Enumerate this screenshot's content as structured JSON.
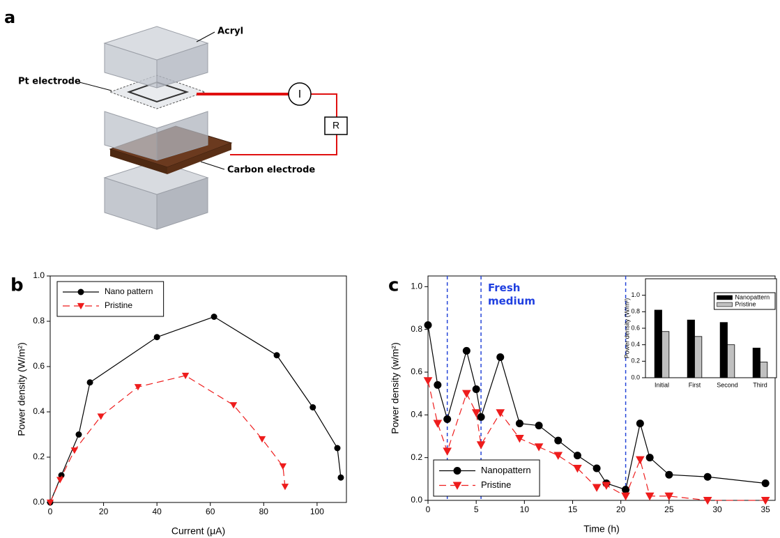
{
  "diagram": {
    "label": "a",
    "acryl": "Acryl",
    "pt_electrode": "Pt electrode",
    "carbon_electrode": "Carbon electrode",
    "current": "I",
    "resistor": "R"
  },
  "chart_data": [
    {
      "type": "line",
      "label": "b",
      "x_label": "Current (μA)",
      "y_label": "Power density (W/m²)",
      "xlim": [
        0,
        111
      ],
      "ylim": [
        0,
        1.0
      ],
      "xticks": [
        0,
        20,
        40,
        60,
        80,
        100
      ],
      "yticks": [
        {
          "value": 0,
          "label": "0.0"
        },
        {
          "value": 0.2,
          "label": "0.2"
        },
        {
          "value": 0.4,
          "label": "0.4"
        },
        {
          "value": 0.6,
          "label": "0.6"
        },
        {
          "value": 0.8,
          "label": "0.8"
        },
        {
          "value": 1.0,
          "label": "1.0"
        }
      ],
      "legend": "upper left",
      "series": [
        {
          "name": "Nano pattern",
          "color": "#000000",
          "marker": "circle",
          "dashed": false,
          "x": [
            0,
            4.2,
            10.7,
            14.9,
            40,
            61.4,
            84.9,
            98.4,
            107.6,
            108.9
          ],
          "values": [
            0,
            0.12,
            0.3,
            0.53,
            0.73,
            0.82,
            0.65,
            0.42,
            0.24,
            0.11
          ]
        },
        {
          "name": "Pristine",
          "color": "#ee1c1c",
          "marker": "triangle-down",
          "dashed": true,
          "x": [
            0,
            3.7,
            9.1,
            19,
            32.9,
            50.7,
            68.7,
            79.4,
            87.2,
            88
          ],
          "values": [
            0,
            0.1,
            0.23,
            0.38,
            0.51,
            0.56,
            0.43,
            0.28,
            0.16,
            0.07
          ]
        }
      ]
    },
    {
      "type": "line",
      "label": "c",
      "x_label": "Time (h)",
      "y_label": "Power density (w/m²)",
      "xlim": [
        0,
        36
      ],
      "ylim": [
        0,
        1.05
      ],
      "xticks": [
        0,
        5,
        10,
        15,
        20,
        25,
        30,
        35
      ],
      "yticks": [
        {
          "value": 0,
          "label": "0.0"
        },
        {
          "value": 0.2,
          "label": "0.2"
        },
        {
          "value": 0.4,
          "label": "0.4"
        },
        {
          "value": 0.6,
          "label": "0.6"
        },
        {
          "value": 0.8,
          "label": "0.8"
        },
        {
          "value": 1.0,
          "label": "1.0"
        }
      ],
      "legend": "lower left",
      "vlines": [
        2,
        5.5,
        20.5
      ],
      "vline_color": "#2545d8",
      "annotation": "Fresh medium",
      "annotation_color": "#2040e0",
      "x": [
        0,
        1,
        2,
        4,
        5,
        5.5,
        7.5,
        9.5,
        11.5,
        13.5,
        15.5,
        17.5,
        18.5,
        20.5,
        22,
        23,
        25,
        29,
        35
      ],
      "series": [
        {
          "name": "Nanopattern",
          "color": "#000000",
          "marker": "circle",
          "dashed": false,
          "values": [
            0.82,
            0.54,
            0.38,
            0.7,
            0.52,
            0.39,
            0.67,
            0.36,
            0.35,
            0.28,
            0.21,
            0.15,
            0.08,
            0.05,
            0.36,
            0.2,
            0.12,
            0.11,
            0.08
          ]
        },
        {
          "name": "Pristine",
          "color": "#ee1c1c",
          "marker": "triangle-down",
          "dashed": true,
          "values": [
            0.56,
            0.36,
            0.23,
            0.5,
            0.41,
            0.26,
            0.41,
            0.29,
            0.25,
            0.21,
            0.15,
            0.06,
            0.07,
            0.02,
            0.19,
            0.02,
            0.02,
            0.0,
            0.0
          ]
        }
      ]
    },
    {
      "type": "bar",
      "y_label": "Power density (W/m²)",
      "categories": [
        "Initial",
        "First",
        "Second",
        "Third"
      ],
      "ylim": [
        0,
        1.2
      ],
      "yticks": [
        {
          "value": 0,
          "label": "0.0"
        },
        {
          "value": 0.2,
          "label": "0.2"
        },
        {
          "value": 0.4,
          "label": "0.4"
        },
        {
          "value": 0.6,
          "label": "0.6"
        },
        {
          "value": 0.8,
          "label": "0.8"
        },
        {
          "value": 1.0,
          "label": "1.0"
        }
      ],
      "legend": "upper right",
      "series": [
        {
          "name": "Nanopattern",
          "color": "#000000",
          "values": [
            0.82,
            0.7,
            0.67,
            0.36
          ]
        },
        {
          "name": "Pristine",
          "color": "#c0c0c0",
          "values": [
            0.56,
            0.5,
            0.4,
            0.19
          ]
        }
      ]
    }
  ]
}
